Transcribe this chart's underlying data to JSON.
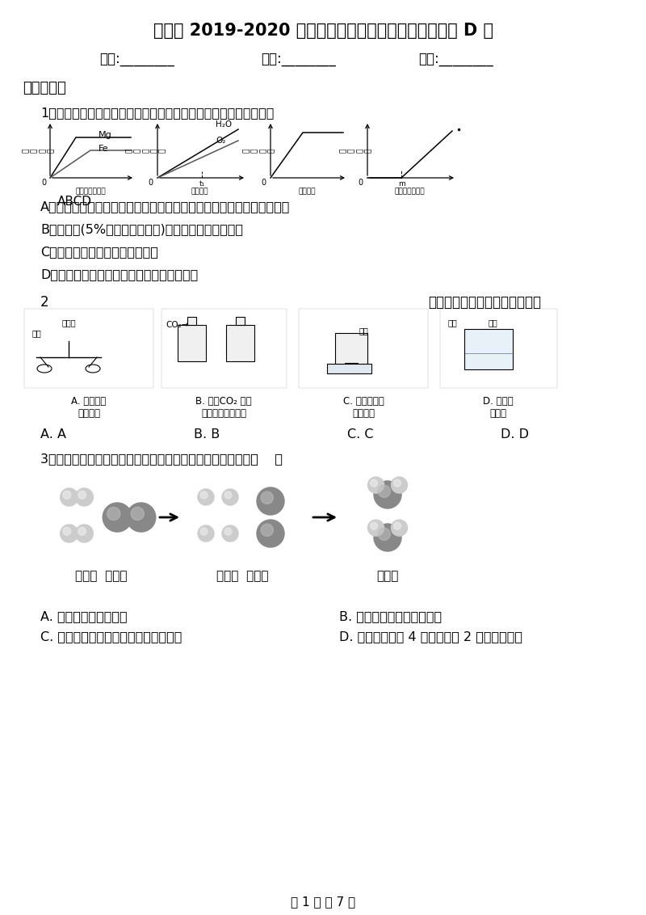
{
  "title": "福州市 2019-2020 年度九年级上学期期中考试化学试题 D 卷",
  "bg_color": "#ffffff",
  "page_footer": "第 1 页 共 7 页",
  "header_fields": [
    "姓名:________",
    "班级:________",
    "成绩:________"
  ],
  "section1_title": "一、单选题",
  "q1_text": "1．下列图像表示化学实验中数量之间的对应关系，其中不合理的是",
  "q1_options": [
    "A．向等质量的镁粉和铁粉中分别加入过量且溶质质量分数相同的稀硫酸",
    "B．双氧水(5%的过氧化氢溶液)在二氧化锰催化下分解",
    "C．铜片在酒精灯火焰上充分灼烧",
    "D．向一定质量的石灰石中加入过量的稀盐酸"
  ],
  "q2_num": "2",
  "q2_suffix": "下列实验设计，能达到目的的是",
  "q2_sub_labels_A": "A. 探究质量\n守恒定律",
  "q2_sub_labels_B": "B. 验证CO₂ 能与\n氢氧化钠溶液反应",
  "q2_sub_labels_C": "C. 测定空气中\n氧气含量",
  "q2_sub_labels_D": "D. 探究燃\n烧条件",
  "q2_answer_options": [
    "A. A",
    "B. B",
    "C. C",
    "D. D"
  ],
  "q3_text": "3．如图是氢气燃烧的微观示意图，从中获得的信息正确的是（    ）",
  "q3_mol_labels": [
    "氢分子  氧分子",
    "氢原子  氧原子",
    "水分子"
  ],
  "q3_options": [
    "A. 生成物是一种化合物",
    "B. 氢气燃烧生成了两种物质",
    "C. 该反应说明水是由氢气和氧气组成的",
    "D. 每个水分子由 4 个氢原子和 2 个氧原子构成"
  ],
  "graph_A_ylabel": "氢\n气\n质\n量",
  "graph_B_ylabel": "生\n成\n物\n质\n量",
  "graph_C_ylabel": "固\n体\n质\n量",
  "graph_D_ylabel": "溶\n液\n质\n量",
  "graph_A_xlabel": "加入稀硫酸质量",
  "graph_B_xlabel": "反应时间",
  "graph_C_xlabel": "加热时间",
  "graph_D_xlabel": "加入稀盐酸质量",
  "graph_A_mg": "Mg",
  "graph_A_fe": "Fe",
  "graph_B_h2o": "H₂O",
  "graph_B_o2": "O₂",
  "graph_D_t": "t₁",
  "graph_D_m": "m",
  "abcd_label": "ABCD"
}
